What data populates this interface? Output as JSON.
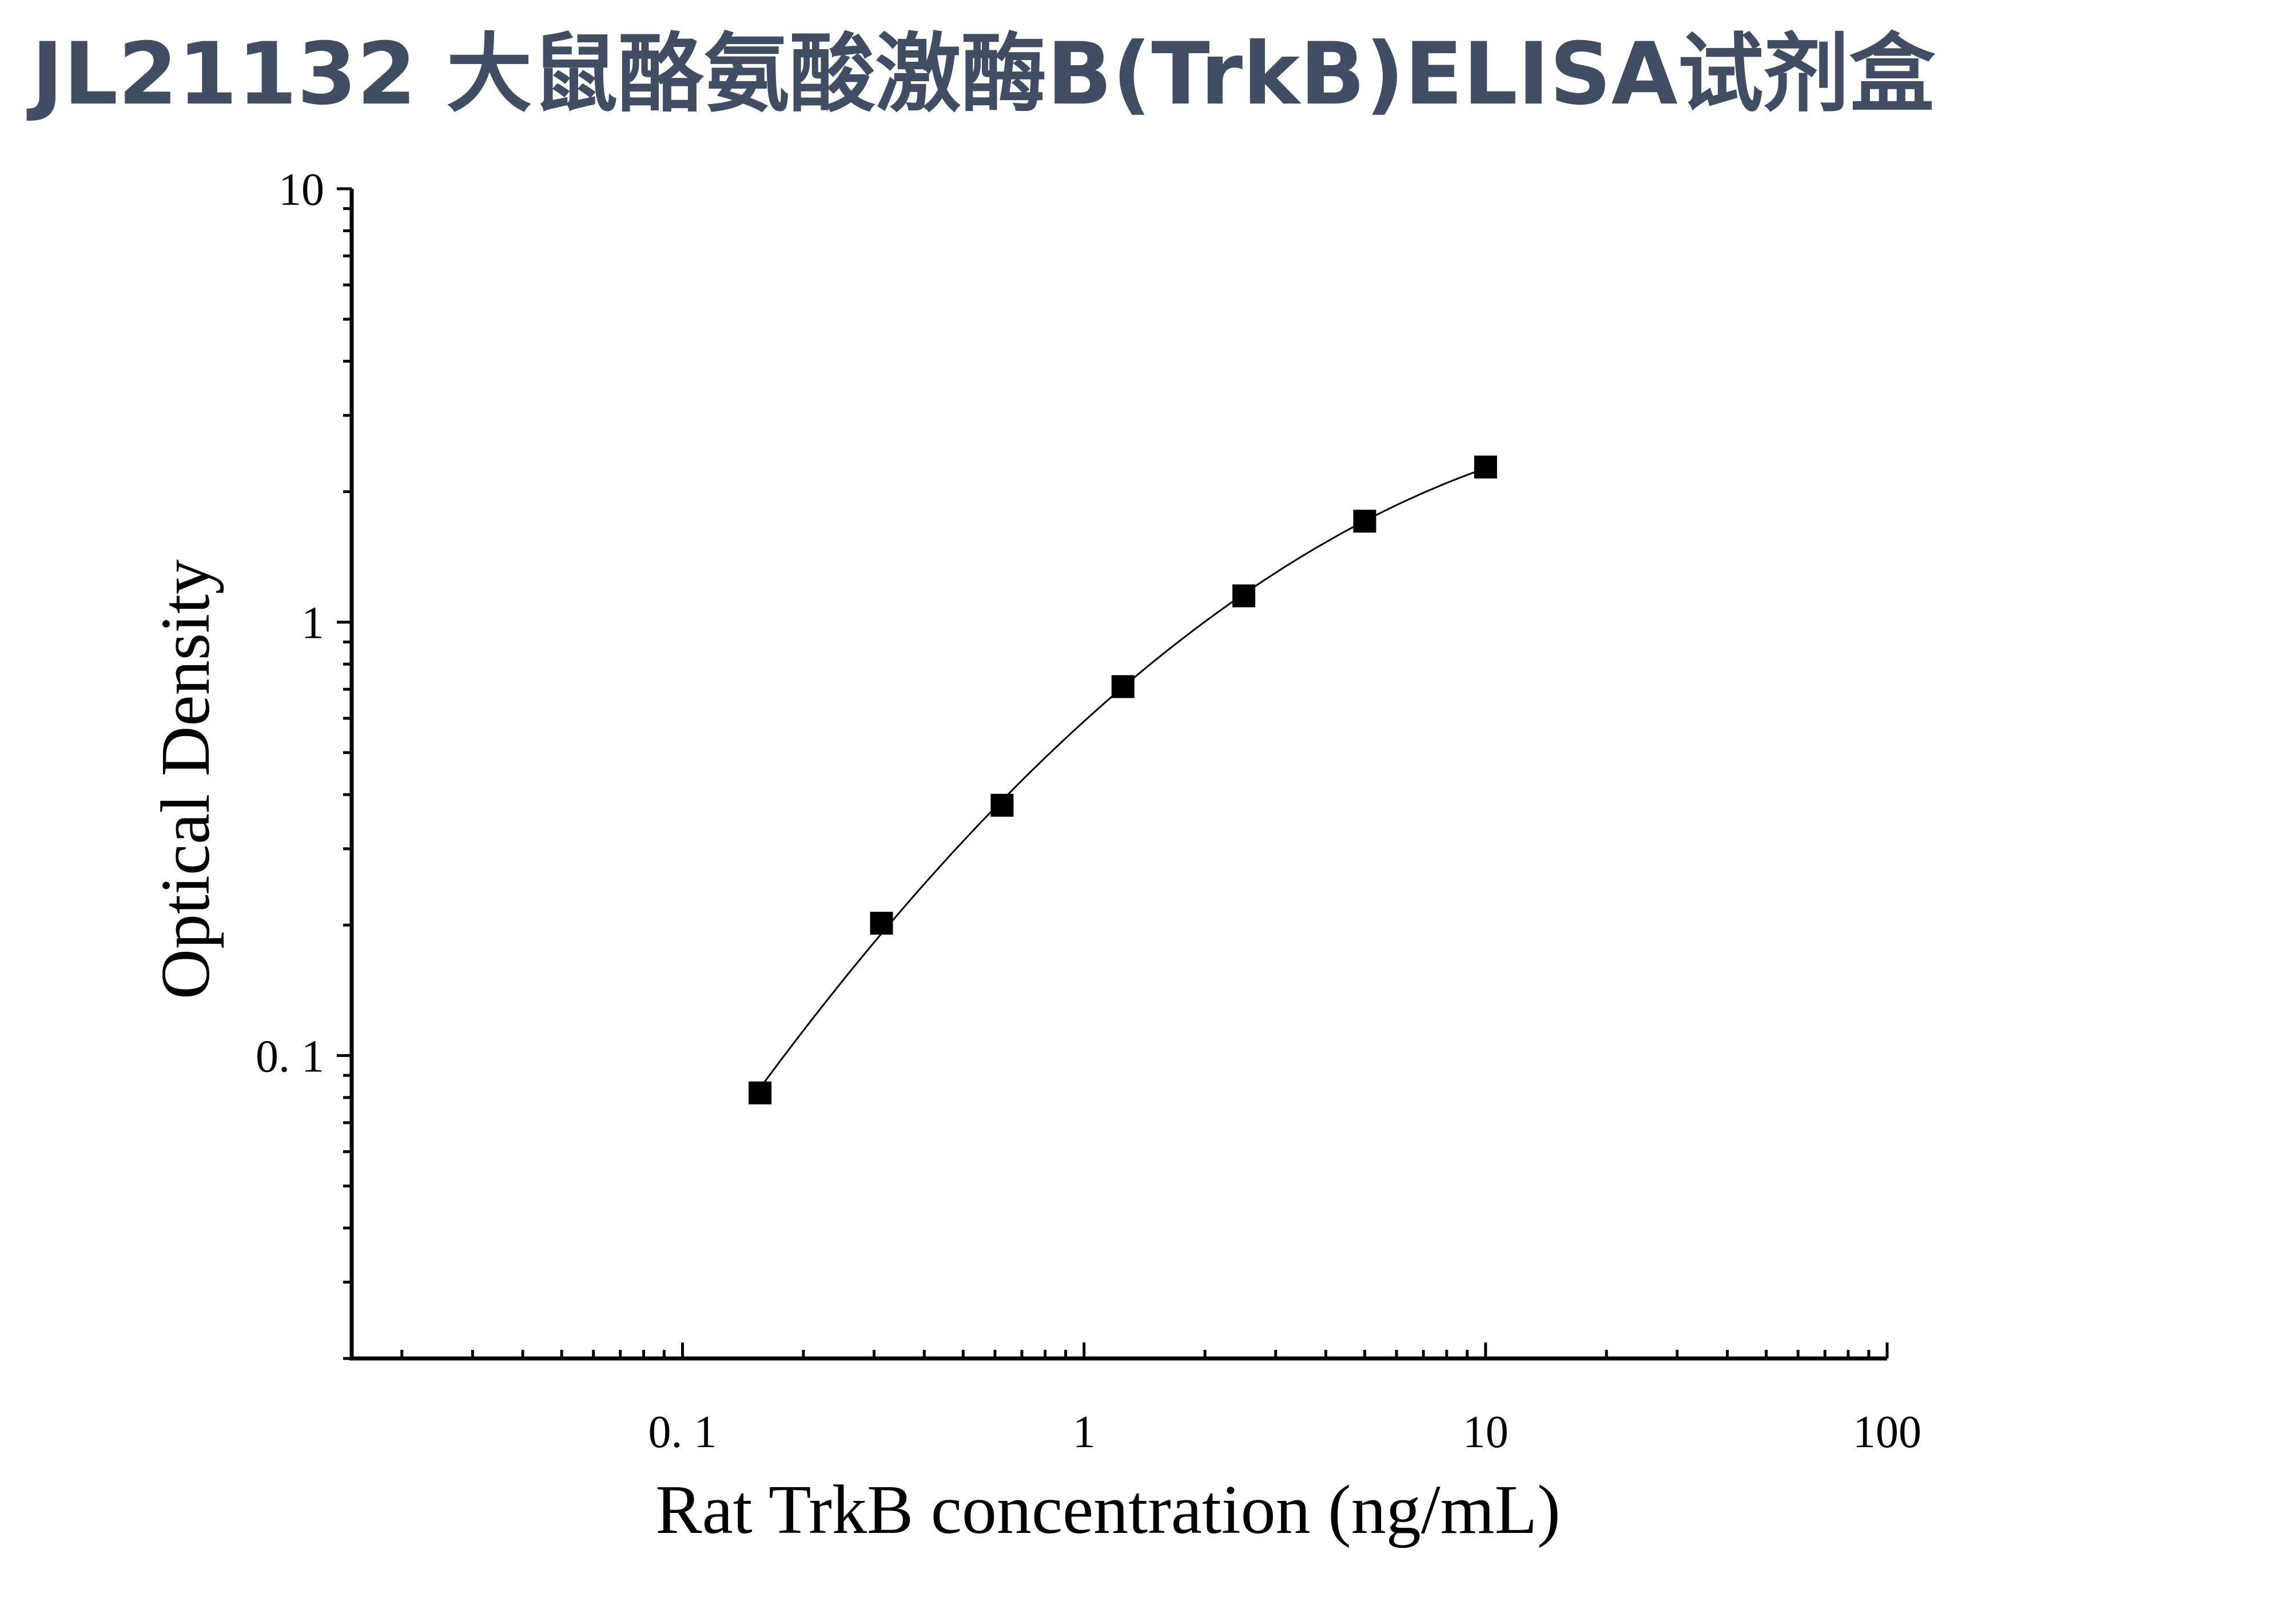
{
  "page": {
    "title": "JL21132 大鼠酪氨酸激酶B(TrkB)ELISA试剂盒"
  },
  "chart_data": {
    "type": "scatter",
    "title": "",
    "xlabel": "Rat TrkB concentration (ng/mL)",
    "ylabel": "Optical Density",
    "x_scale": "log",
    "y_scale": "log",
    "xlim": [
      0.015,
      100
    ],
    "ylim": [
      0.02,
      10
    ],
    "x_ticks": [
      0.1,
      1,
      10,
      100
    ],
    "x_tick_labels": [
      "0. 1",
      "1",
      "10",
      "100"
    ],
    "y_ticks": [
      0.1,
      1,
      10
    ],
    "y_tick_labels": [
      "0. 1",
      "1",
      "10"
    ],
    "grid": false,
    "series": [
      {
        "marker": "square",
        "color": "#000000",
        "fit_line": true,
        "x": [
          0.156,
          0.313,
          0.625,
          1.25,
          2.5,
          5,
          10
        ],
        "y": [
          0.082,
          0.202,
          0.378,
          0.71,
          1.15,
          1.71,
          2.28
        ]
      }
    ]
  }
}
